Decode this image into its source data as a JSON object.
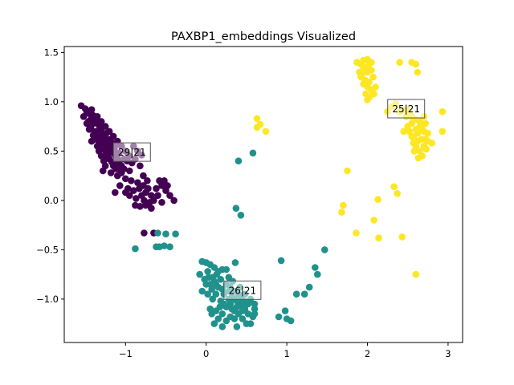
{
  "chart_data": {
    "type": "scatter",
    "title": "PAXBP1_embeddings Visualized",
    "xlabel": "",
    "ylabel": "",
    "xlim": [
      -1.76,
      3.18
    ],
    "ylim": [
      -1.44,
      1.56
    ],
    "xticks": [
      -1,
      0,
      1,
      2,
      3
    ],
    "xtick_labels": [
      "−1",
      "0",
      "1",
      "2",
      "3"
    ],
    "yticks": [
      -1.0,
      -0.5,
      0.0,
      0.5,
      1.0,
      1.5
    ],
    "ytick_labels": [
      "−1.0",
      "−0.5",
      "0.0",
      "0.5",
      "1.0",
      "1.5"
    ],
    "grid": false,
    "series": [
      {
        "color": "#440154",
        "centroid": {
          "x": -0.92,
          "y": 0.49
        },
        "label": "29|21",
        "points": [
          [
            -1.55,
            0.96
          ],
          [
            -1.5,
            0.93
          ],
          [
            -1.48,
            0.9
          ],
          [
            -1.45,
            0.88
          ],
          [
            -1.52,
            0.85
          ],
          [
            -1.42,
            0.92
          ],
          [
            -1.4,
            0.86
          ],
          [
            -1.38,
            0.82
          ],
          [
            -1.46,
            0.8
          ],
          [
            -1.35,
            0.78
          ],
          [
            -1.43,
            0.75
          ],
          [
            -1.32,
            0.74
          ],
          [
            -1.38,
            0.7
          ],
          [
            -1.3,
            0.7
          ],
          [
            -1.28,
            0.66
          ],
          [
            -1.36,
            0.64
          ],
          [
            -1.25,
            0.63
          ],
          [
            -1.33,
            0.6
          ],
          [
            -1.22,
            0.6
          ],
          [
            -1.3,
            0.57
          ],
          [
            -1.2,
            0.55
          ],
          [
            -1.27,
            0.52
          ],
          [
            -1.18,
            0.52
          ],
          [
            -1.24,
            0.49
          ],
          [
            -1.15,
            0.48
          ],
          [
            -1.22,
            0.45
          ],
          [
            -1.12,
            0.45
          ],
          [
            -1.2,
            0.42
          ],
          [
            -1.1,
            0.42
          ],
          [
            -1.17,
            0.39
          ],
          [
            -1.08,
            0.38
          ],
          [
            -1.15,
            0.35
          ],
          [
            -1.05,
            0.35
          ],
          [
            -1.12,
            0.32
          ],
          [
            -1.02,
            0.32
          ],
          [
            -1.3,
            0.45
          ],
          [
            -1.27,
            0.4
          ],
          [
            -1.35,
            0.55
          ],
          [
            -1.25,
            0.35
          ],
          [
            -1.4,
            0.66
          ],
          [
            -1.45,
            0.72
          ],
          [
            -1.33,
            0.5
          ],
          [
            -1.0,
            0.5
          ],
          [
            -0.95,
            0.45
          ],
          [
            -0.9,
            0.55
          ],
          [
            -0.85,
            0.5
          ],
          [
            -1.05,
            0.55
          ],
          [
            -1.1,
            0.6
          ],
          [
            -1.15,
            0.65
          ],
          [
            -1.2,
            0.7
          ],
          [
            -1.25,
            0.75
          ],
          [
            -1.3,
            0.8
          ],
          [
            -1.35,
            0.85
          ],
          [
            -1.48,
            0.78
          ],
          [
            -1.42,
            0.6
          ],
          [
            -1.28,
            0.3
          ],
          [
            -1.18,
            0.28
          ],
          [
            -1.1,
            0.25
          ],
          [
            -1.05,
            0.28
          ],
          [
            -0.98,
            0.4
          ],
          [
            -0.92,
            0.38
          ],
          [
            -0.88,
            0.42
          ],
          [
            -0.8,
            0.46
          ],
          [
            -0.82,
            0.35
          ],
          [
            -0.95,
            0.3
          ],
          [
            -1.0,
            0.22
          ],
          [
            -0.93,
            0.2
          ],
          [
            -0.85,
            0.18
          ],
          [
            -1.07,
            0.15
          ],
          [
            -0.97,
            0.12
          ],
          [
            -0.9,
            0.1
          ],
          [
            -0.83,
            0.12
          ],
          [
            -0.78,
            0.15
          ],
          [
            -0.75,
            0.08
          ],
          [
            -0.72,
            0.12
          ],
          [
            -0.68,
            0.05
          ],
          [
            -0.8,
            0.05
          ],
          [
            -0.87,
            0.02
          ],
          [
            -0.77,
            0.0
          ],
          [
            -0.7,
            -0.02
          ],
          [
            -0.65,
            0.0
          ],
          [
            -0.6,
            0.05
          ],
          [
            -0.62,
            0.12
          ],
          [
            -0.55,
            0.15
          ],
          [
            -0.58,
            0.2
          ],
          [
            -0.52,
            0.2
          ],
          [
            -0.48,
            0.15
          ],
          [
            -0.5,
            0.1
          ],
          [
            -0.45,
            0.05
          ],
          [
            -0.4,
            0.0
          ],
          [
            -0.55,
            -0.02
          ],
          [
            -0.75,
            -0.05
          ],
          [
            -0.82,
            -0.06
          ],
          [
            -0.68,
            -0.08
          ],
          [
            -0.88,
            -0.05
          ],
          [
            -0.78,
            0.25
          ],
          [
            -0.73,
            0.2
          ],
          [
            -0.95,
            0.05
          ],
          [
            -1.0,
            0.08
          ],
          [
            -1.13,
            0.08
          ],
          [
            -1.37,
            0.62
          ],
          [
            -1.34,
            0.68
          ],
          [
            -1.26,
            0.58
          ],
          [
            -1.22,
            0.5
          ],
          [
            -1.14,
            0.52
          ],
          [
            -1.08,
            0.48
          ],
          [
            -1.19,
            0.62
          ],
          [
            -1.12,
            0.56
          ],
          [
            -1.29,
            0.62
          ],
          [
            -1.43,
            0.82
          ],
          [
            -0.77,
            -0.33
          ],
          [
            -0.65,
            -0.33
          ],
          [
            -1.4,
            0.78
          ],
          [
            -1.32,
            0.77
          ],
          [
            -1.24,
            0.68
          ],
          [
            -1.16,
            0.58
          ],
          [
            -1.02,
            0.42
          ],
          [
            -1.12,
            0.38
          ],
          [
            -1.06,
            0.3
          ],
          [
            -1.24,
            0.44
          ]
        ]
      },
      {
        "color": "#21918c",
        "centroid": {
          "x": 0.45,
          "y": -0.91
        },
        "label": "26|21",
        "points": [
          [
            0.58,
            0.48
          ],
          [
            0.4,
            0.4
          ],
          [
            0.37,
            -0.08
          ],
          [
            0.43,
            -0.15
          ],
          [
            -0.6,
            -0.33
          ],
          [
            -0.52,
            -0.46
          ],
          [
            -0.45,
            -0.47
          ],
          [
            -0.38,
            -0.34
          ],
          [
            -0.62,
            -0.47
          ],
          [
            -0.88,
            -0.49
          ],
          [
            -0.58,
            -0.47
          ],
          [
            -0.5,
            -0.34
          ],
          [
            0.36,
            -0.63
          ],
          [
            -0.05,
            -0.62
          ],
          [
            0.0,
            -0.63
          ],
          [
            0.05,
            -0.65
          ],
          [
            0.1,
            -0.68
          ],
          [
            -0.08,
            -0.75
          ],
          [
            0.02,
            -0.72
          ],
          [
            0.08,
            -0.78
          ],
          [
            0.13,
            -0.75
          ],
          [
            0.18,
            -0.8
          ],
          [
            0.05,
            -0.85
          ],
          [
            0.15,
            -0.88
          ],
          [
            0.2,
            -0.9
          ],
          [
            0.25,
            -0.85
          ],
          [
            0.22,
            -0.95
          ],
          [
            0.28,
            -0.92
          ],
          [
            0.32,
            -0.98
          ],
          [
            0.35,
            -1.0
          ],
          [
            0.38,
            -1.02
          ],
          [
            0.42,
            -1.05
          ],
          [
            0.45,
            -1.08
          ],
          [
            0.48,
            -1.1
          ],
          [
            0.3,
            -1.05
          ],
          [
            0.25,
            -1.08
          ],
          [
            0.35,
            -1.12
          ],
          [
            0.4,
            -1.15
          ],
          [
            0.45,
            -1.2
          ],
          [
            0.5,
            -1.25
          ],
          [
            0.55,
            -1.25
          ],
          [
            0.6,
            -1.1
          ],
          [
            0.58,
            -1.18
          ],
          [
            0.52,
            -1.05
          ],
          [
            0.2,
            -1.15
          ],
          [
            0.15,
            -1.2
          ],
          [
            0.1,
            -1.25
          ],
          [
            0.25,
            -1.22
          ],
          [
            0.3,
            -1.18
          ],
          [
            0.38,
            -1.28
          ],
          [
            0.2,
            -1.28
          ],
          [
            0.05,
            -1.1
          ],
          [
            0.08,
            -1.0
          ],
          [
            0.12,
            -0.95
          ],
          [
            0.18,
            -1.02
          ],
          [
            -0.05,
            -0.92
          ],
          [
            0.0,
            -0.85
          ],
          [
            0.02,
            -0.95
          ],
          [
            0.12,
            -0.85
          ],
          [
            0.07,
            -0.9
          ],
          [
            0.28,
            -0.78
          ],
          [
            0.33,
            -0.82
          ],
          [
            0.42,
            -0.88
          ],
          [
            0.48,
            -0.95
          ],
          [
            0.55,
            -1.0
          ],
          [
            0.4,
            -0.95
          ],
          [
            0.43,
            -1.0
          ],
          [
            0.47,
            -1.02
          ],
          [
            0.35,
            -0.92
          ],
          [
            0.3,
            -0.88
          ],
          [
            0.15,
            -0.72
          ],
          [
            0.2,
            -0.7
          ],
          [
            0.25,
            -0.7
          ],
          [
            0.1,
            -0.82
          ],
          [
            -0.02,
            -0.8
          ],
          [
            0.03,
            -0.78
          ],
          [
            0.6,
            -1.05
          ],
          [
            0.6,
            -1.15
          ],
          [
            0.52,
            -1.15
          ],
          [
            0.35,
            -1.2
          ],
          [
            0.45,
            -1.12
          ],
          [
            0.38,
            -1.08
          ],
          [
            0.32,
            -1.1
          ],
          [
            0.28,
            -1.0
          ],
          [
            0.22,
            -1.05
          ],
          [
            0.17,
            -1.08
          ],
          [
            0.12,
            -1.12
          ],
          [
            0.07,
            -1.15
          ],
          [
            0.9,
            -1.18
          ],
          [
            0.98,
            -1.12
          ],
          [
            1.0,
            -1.2
          ],
          [
            1.05,
            -1.22
          ],
          [
            1.12,
            -0.95
          ],
          [
            1.22,
            -0.95
          ],
          [
            1.28,
            -0.88
          ],
          [
            1.35,
            -0.68
          ],
          [
            1.38,
            -0.75
          ],
          [
            1.47,
            -0.5
          ],
          [
            0.93,
            -0.61
          ]
        ]
      },
      {
        "color": "#fde725",
        "centroid": {
          "x": 2.48,
          "y": 0.93
        },
        "label": "25|21",
        "points": [
          [
            1.87,
            1.4
          ],
          [
            1.92,
            1.38
          ],
          [
            1.95,
            1.42
          ],
          [
            2.0,
            1.43
          ],
          [
            2.02,
            1.38
          ],
          [
            2.05,
            1.4
          ],
          [
            1.95,
            1.35
          ],
          [
            1.9,
            1.3
          ],
          [
            2.0,
            1.3
          ],
          [
            2.05,
            1.32
          ],
          [
            1.92,
            1.25
          ],
          [
            1.97,
            1.22
          ],
          [
            2.02,
            1.2
          ],
          [
            2.07,
            1.25
          ],
          [
            1.95,
            1.18
          ],
          [
            2.0,
            1.15
          ],
          [
            2.05,
            1.12
          ],
          [
            2.1,
            1.15
          ],
          [
            1.98,
            1.08
          ],
          [
            2.03,
            1.05
          ],
          [
            2.08,
            1.08
          ],
          [
            2.0,
            1.02
          ],
          [
            1.93,
            1.28
          ],
          [
            1.98,
            1.33
          ],
          [
            2.4,
            1.4
          ],
          [
            2.55,
            1.4
          ],
          [
            2.6,
            1.38
          ],
          [
            2.62,
            1.3
          ],
          [
            2.35,
            0.98
          ],
          [
            2.5,
            0.92
          ],
          [
            2.55,
            0.85
          ],
          [
            2.6,
            0.82
          ],
          [
            2.65,
            0.8
          ],
          [
            2.7,
            0.85
          ],
          [
            2.72,
            0.78
          ],
          [
            2.68,
            0.72
          ],
          [
            2.62,
            0.68
          ],
          [
            2.58,
            0.62
          ],
          [
            2.6,
            0.55
          ],
          [
            2.65,
            0.5
          ],
          [
            2.7,
            0.55
          ],
          [
            2.75,
            0.6
          ],
          [
            2.73,
            0.52
          ],
          [
            2.68,
            0.45
          ],
          [
            2.63,
            0.43
          ],
          [
            2.58,
            0.5
          ],
          [
            2.52,
            0.7
          ],
          [
            2.5,
            0.75
          ],
          [
            2.45,
            0.7
          ],
          [
            2.55,
            0.78
          ],
          [
            2.65,
            0.75
          ],
          [
            2.7,
            0.7
          ],
          [
            2.75,
            0.68
          ],
          [
            2.8,
            0.58
          ],
          [
            2.93,
            0.9
          ],
          [
            2.93,
            0.7
          ],
          [
            2.72,
            0.62
          ],
          [
            2.62,
            0.6
          ],
          [
            2.67,
            0.62
          ],
          [
            2.57,
            0.58
          ],
          [
            2.55,
            0.65
          ],
          [
            2.6,
            0.72
          ],
          [
            2.48,
            0.85
          ],
          [
            2.4,
            0.9
          ],
          [
            2.25,
            0.9
          ],
          [
            2.3,
            0.95
          ],
          [
            2.45,
            0.92
          ],
          [
            2.52,
            0.88
          ],
          [
            0.63,
            0.83
          ],
          [
            0.67,
            0.77
          ],
          [
            0.74,
            0.7
          ],
          [
            0.63,
            0.74
          ],
          [
            1.75,
            0.3
          ],
          [
            1.7,
            -0.05
          ],
          [
            1.68,
            -0.12
          ],
          [
            1.86,
            -0.33
          ],
          [
            2.13,
            0.01
          ],
          [
            2.08,
            -0.2
          ],
          [
            2.14,
            -0.38
          ],
          [
            2.33,
            0.14
          ],
          [
            2.37,
            0.07
          ],
          [
            2.43,
            -0.37
          ],
          [
            2.6,
            -0.75
          ]
        ]
      }
    ]
  }
}
